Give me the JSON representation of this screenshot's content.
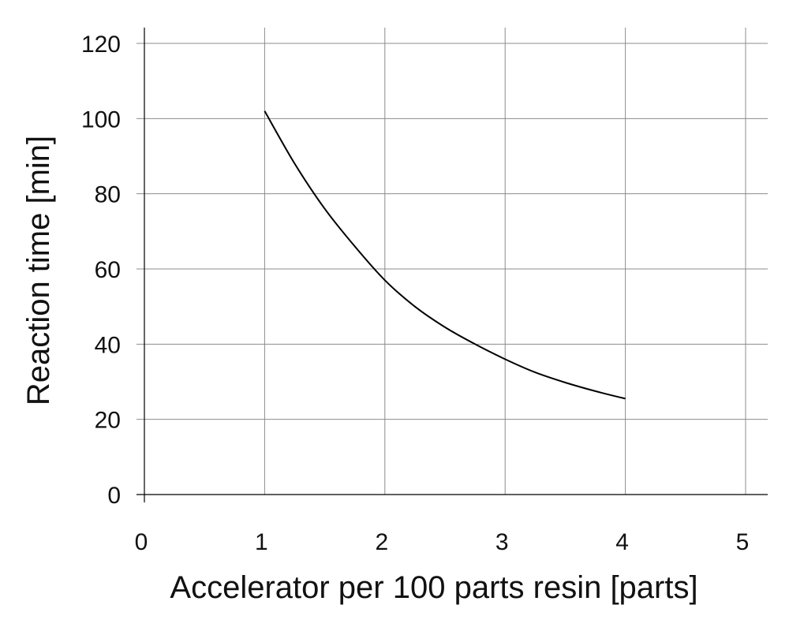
{
  "chart_data": {
    "type": "line",
    "title": "",
    "xlabel": "Accelerator per 100 parts resin [parts]",
    "ylabel": "Reaction time [min]",
    "xlim": [
      0,
      5
    ],
    "ylim": [
      0,
      120
    ],
    "x_ticks": [
      0,
      1,
      2,
      3,
      4,
      5
    ],
    "y_ticks": [
      0,
      20,
      40,
      60,
      80,
      100,
      120
    ],
    "grid": true,
    "series": [
      {
        "color": "#000000",
        "x": [
          1.0,
          1.25,
          1.5,
          1.75,
          2.0,
          2.25,
          2.5,
          2.75,
          3.0,
          3.25,
          3.5,
          3.75,
          4.0
        ],
        "y": [
          102,
          88,
          76,
          66,
          57,
          50,
          44.5,
          40,
          36,
          32.5,
          29.8,
          27.5,
          25.5
        ]
      }
    ]
  }
}
